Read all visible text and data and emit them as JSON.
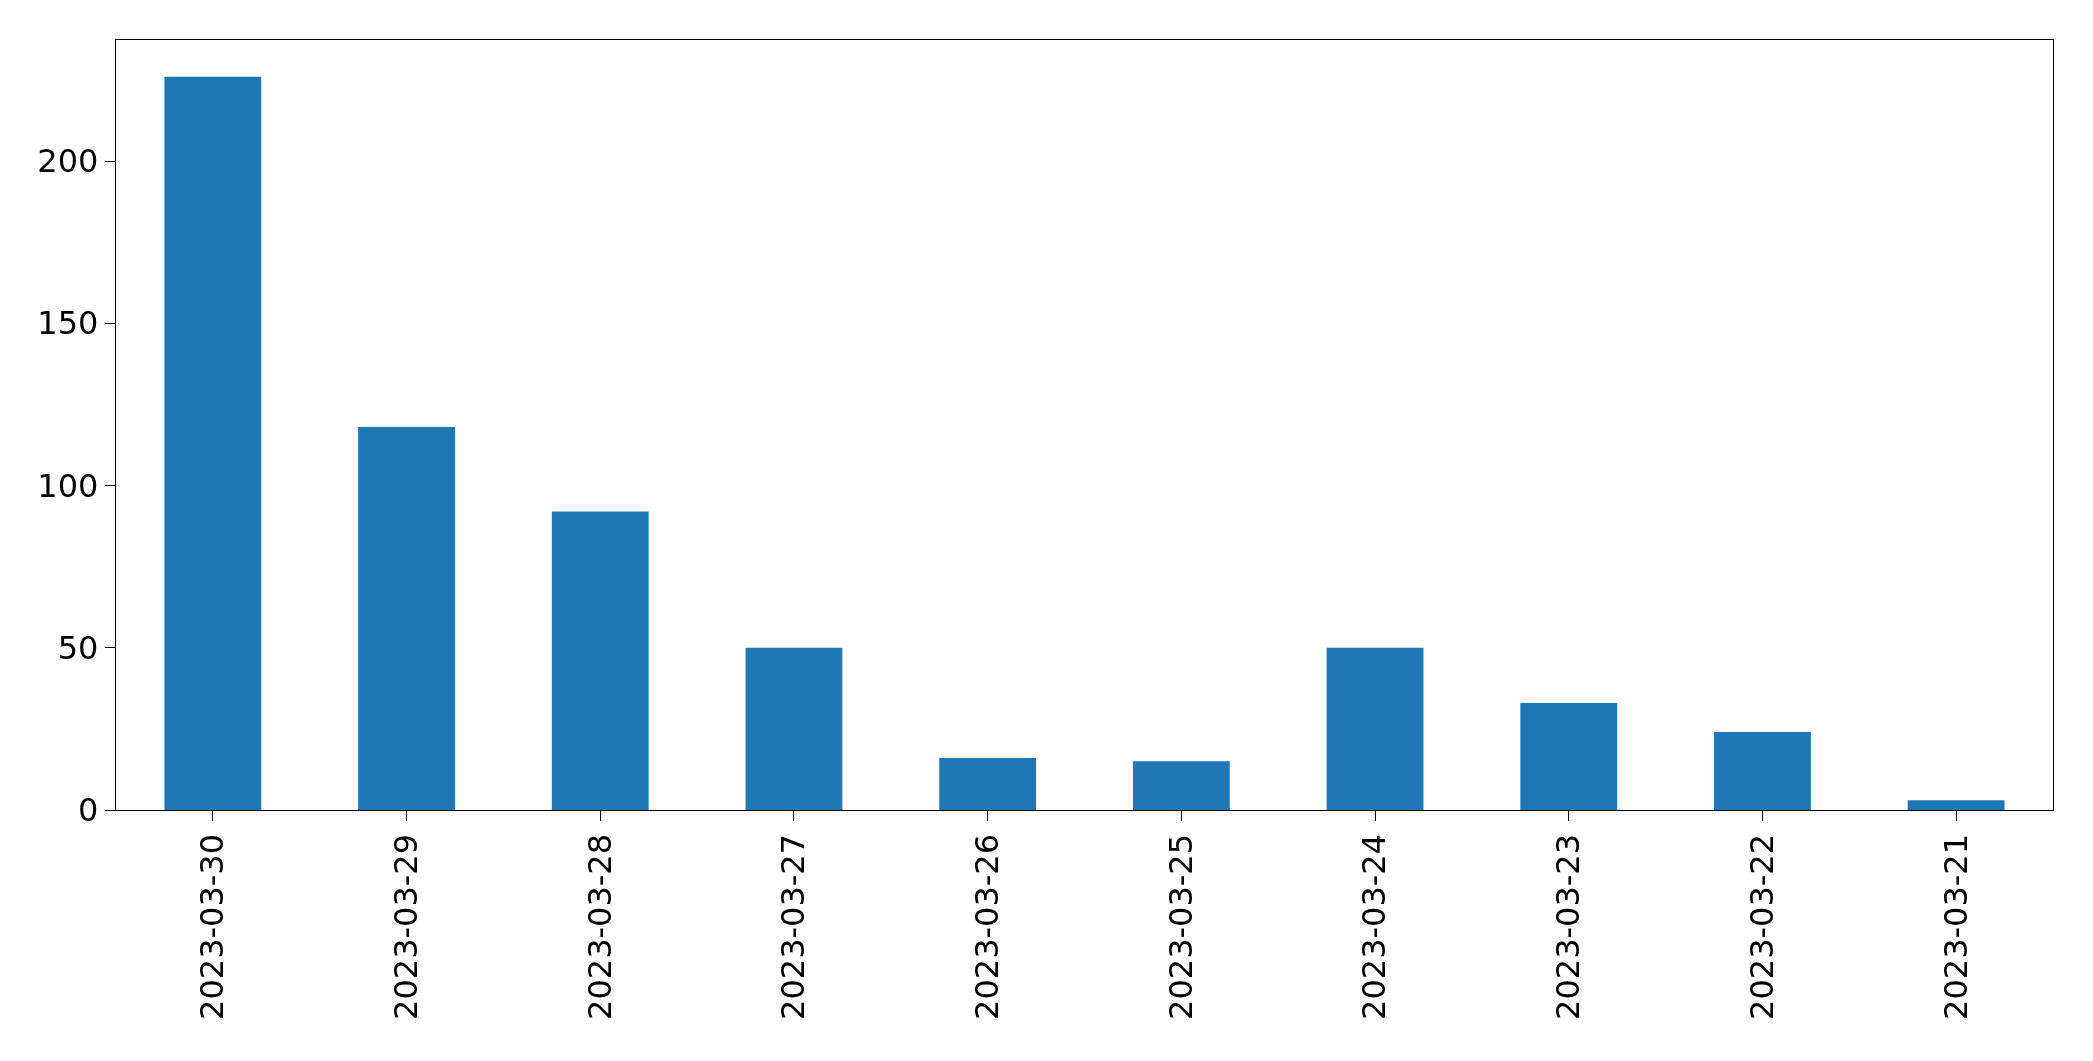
{
  "chart_data": {
    "type": "bar",
    "categories": [
      "2023-03-30",
      "2023-03-29",
      "2023-03-28",
      "2023-03-27",
      "2023-03-26",
      "2023-03-25",
      "2023-03-24",
      "2023-03-23",
      "2023-03-22",
      "2023-03-21"
    ],
    "values": [
      226,
      118,
      92,
      50,
      16,
      15,
      50,
      33,
      24,
      3
    ],
    "color": "#1f77b4",
    "ylim": [
      0,
      237.3
    ],
    "yticks": [
      0,
      50,
      100,
      150,
      200
    ]
  }
}
